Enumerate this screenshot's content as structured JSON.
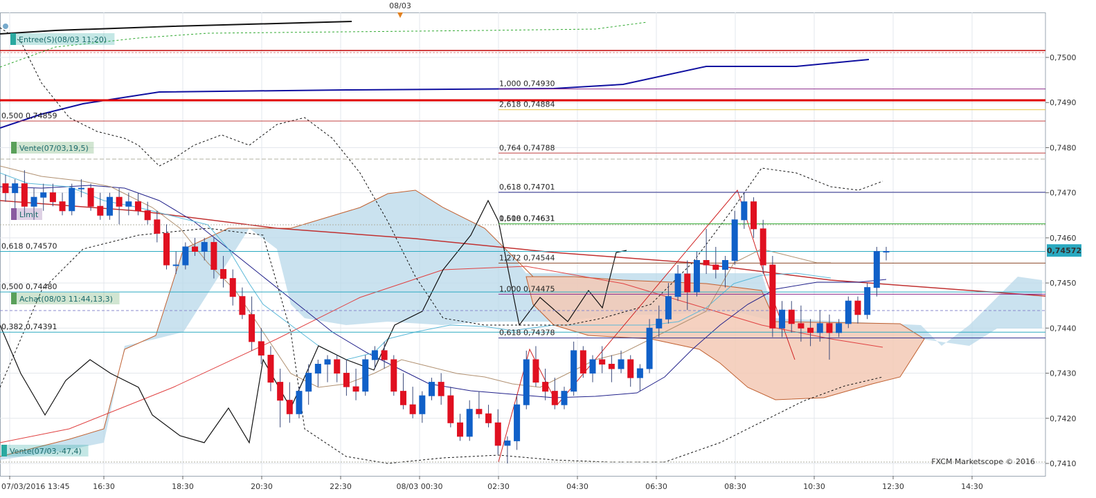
{
  "top_date_label": "08/03",
  "watermark": "FXCM Marketscope © 2016",
  "chart_data": {
    "type": "candlestick",
    "ylim": [
      0.7407,
      0.7514
    ],
    "y_ticks": [
      "0,7410",
      "0,7420",
      "0,7430",
      "0,7440",
      "0,7450",
      "0,7460",
      "0,7470",
      "0,7480",
      "0,7490",
      "0,7500"
    ],
    "x_ticks": [
      "07/03/2016 13:45",
      "16:30",
      "18:30",
      "20:30",
      "22:30",
      "08/03 00:30",
      "02:30",
      "04:30",
      "06:30",
      "08:30",
      "10:30",
      "12:30",
      "14:30"
    ],
    "current_price": "0,74572",
    "fib_levels": [
      {
        "label": "1,000 0,74930",
        "value": 0.7493,
        "color": "#8b2a8b"
      },
      {
        "label": "2,618 0,74884",
        "value": 0.74884,
        "color": "#e8c84a"
      },
      {
        "label": "0,500 0,74859",
        "value": 0.74859,
        "color": "#c04040"
      },
      {
        "label": "0,764 0,74788",
        "value": 0.74788,
        "color": "#c04040"
      },
      {
        "label": "0,618 0,74701",
        "value": 0.74701,
        "color": "#2a2a8b"
      },
      {
        "label": "1,618 0,74631",
        "value": 0.74631,
        "color": "#2fa82f"
      },
      {
        "label": "0,500 0,74631",
        "value": 0.74631,
        "color": "#2fa82f"
      },
      {
        "label": "0,618 0,74570",
        "value": 0.7457,
        "color": "#2aa9c0"
      },
      {
        "label": "1,272 0,74544",
        "value": 0.74544,
        "color": "#8b4a2a"
      },
      {
        "label": "0,500 0,74480",
        "value": 0.7448,
        "color": "#2aa9c0"
      },
      {
        "label": "1,000 0,74475",
        "value": 0.74475,
        "color": "#8b2a8b"
      },
      {
        "label": "0,382 0,74391",
        "value": 0.74391,
        "color": "#2aa9c0"
      },
      {
        "label": "0,618 0,74378",
        "value": 0.74378,
        "color": "#2a2a8b"
      }
    ],
    "order_tags": [
      {
        "label": "Entree(S)(08/03 11:20)",
        "color": "#2aa9a0"
      },
      {
        "label": "Vente(07/03,19,5)",
        "color": "#5aa05a"
      },
      {
        "label": "Limit",
        "color": "#8a5aa0"
      },
      {
        "label": "Achat(08/03 11:44,13,3)",
        "color": "#5aa05a"
      },
      {
        "label": "Vente(07/03,-47,4)",
        "color": "#2aa9a0"
      }
    ],
    "candles": [
      [
        0.7472,
        0.7474,
        0.7468,
        0.747
      ],
      [
        0.747,
        0.7473,
        0.7466,
        0.7472
      ],
      [
        0.7472,
        0.7475,
        0.7465,
        0.7467
      ],
      [
        0.7467,
        0.7471,
        0.7464,
        0.7469
      ],
      [
        0.7469,
        0.7472,
        0.7466,
        0.747
      ],
      [
        0.747,
        0.7472,
        0.7467,
        0.7468
      ],
      [
        0.7468,
        0.747,
        0.7465,
        0.7466
      ],
      [
        0.7466,
        0.7472,
        0.7465,
        0.7471
      ],
      [
        0.7471,
        0.7473,
        0.7469,
        0.7471
      ],
      [
        0.7471,
        0.7472,
        0.7466,
        0.7467
      ],
      [
        0.7467,
        0.747,
        0.7464,
        0.7465
      ],
      [
        0.7465,
        0.747,
        0.7464,
        0.7469
      ],
      [
        0.7469,
        0.7471,
        0.7463,
        0.7467
      ],
      [
        0.7467,
        0.747,
        0.7465,
        0.7468
      ],
      [
        0.7468,
        0.747,
        0.7465,
        0.7466
      ],
      [
        0.7466,
        0.7468,
        0.7463,
        0.7464
      ],
      [
        0.7464,
        0.7466,
        0.7459,
        0.7461
      ],
      [
        0.7461,
        0.7463,
        0.7453,
        0.7454
      ],
      [
        0.7454,
        0.7457,
        0.7452,
        0.7454
      ],
      [
        0.7454,
        0.7459,
        0.7453,
        0.7458
      ],
      [
        0.7458,
        0.746,
        0.7456,
        0.7457
      ],
      [
        0.7457,
        0.746,
        0.7455,
        0.7459
      ],
      [
        0.7459,
        0.746,
        0.7451,
        0.7453
      ],
      [
        0.7453,
        0.7456,
        0.7449,
        0.7451
      ],
      [
        0.7451,
        0.7453,
        0.7445,
        0.7447
      ],
      [
        0.7447,
        0.7449,
        0.7442,
        0.7443
      ],
      [
        0.7443,
        0.7447,
        0.7435,
        0.7437
      ],
      [
        0.7437,
        0.744,
        0.7432,
        0.7434
      ],
      [
        0.7434,
        0.7436,
        0.7426,
        0.7428
      ],
      [
        0.7428,
        0.7431,
        0.7418,
        0.7424
      ],
      [
        0.7424,
        0.7428,
        0.7419,
        0.7421
      ],
      [
        0.7421,
        0.7427,
        0.742,
        0.7426
      ],
      [
        0.7426,
        0.7432,
        0.7423,
        0.743
      ],
      [
        0.743,
        0.7433,
        0.7427,
        0.7432
      ],
      [
        0.7432,
        0.7434,
        0.7428,
        0.7433
      ],
      [
        0.7433,
        0.7434,
        0.7428,
        0.743
      ],
      [
        0.743,
        0.7433,
        0.7425,
        0.7427
      ],
      [
        0.7427,
        0.7431,
        0.7424,
        0.7426
      ],
      [
        0.7426,
        0.7434,
        0.7425,
        0.7433
      ],
      [
        0.7433,
        0.7436,
        0.7431,
        0.7435
      ],
      [
        0.7435,
        0.7437,
        0.7431,
        0.7433
      ],
      [
        0.7433,
        0.7434,
        0.7425,
        0.7426
      ],
      [
        0.7426,
        0.743,
        0.7422,
        0.7423
      ],
      [
        0.7423,
        0.7427,
        0.742,
        0.7421
      ],
      [
        0.7421,
        0.7426,
        0.7419,
        0.7425
      ],
      [
        0.7425,
        0.7429,
        0.7424,
        0.7428
      ],
      [
        0.7428,
        0.743,
        0.7423,
        0.7425
      ],
      [
        0.7425,
        0.7427,
        0.7418,
        0.7419
      ],
      [
        0.7419,
        0.7421,
        0.7415,
        0.7416
      ],
      [
        0.7416,
        0.7424,
        0.7415,
        0.7422
      ],
      [
        0.7422,
        0.7426,
        0.742,
        0.7421
      ],
      [
        0.7421,
        0.7423,
        0.7418,
        0.7419
      ],
      [
        0.7419,
        0.7422,
        0.7412,
        0.7414
      ],
      [
        0.7414,
        0.7416,
        0.741,
        0.7415
      ],
      [
        0.7415,
        0.7425,
        0.7413,
        0.7423
      ],
      [
        0.7423,
        0.7435,
        0.7422,
        0.7433
      ],
      [
        0.7433,
        0.7436,
        0.7427,
        0.7428
      ],
      [
        0.7428,
        0.7431,
        0.7424,
        0.7426
      ],
      [
        0.7426,
        0.7429,
        0.7422,
        0.7423
      ],
      [
        0.7423,
        0.7427,
        0.7422,
        0.7426
      ],
      [
        0.7426,
        0.7437,
        0.7425,
        0.7435
      ],
      [
        0.7435,
        0.7436,
        0.7429,
        0.743
      ],
      [
        0.743,
        0.7434,
        0.7428,
        0.7433
      ],
      [
        0.7433,
        0.7436,
        0.743,
        0.7432
      ],
      [
        0.7432,
        0.7434,
        0.7428,
        0.7431
      ],
      [
        0.7431,
        0.7435,
        0.743,
        0.7433
      ],
      [
        0.7433,
        0.7434,
        0.7427,
        0.7429
      ],
      [
        0.7429,
        0.7432,
        0.7426,
        0.7431
      ],
      [
        0.7431,
        0.7442,
        0.743,
        0.744
      ],
      [
        0.744,
        0.7445,
        0.7438,
        0.7442
      ],
      [
        0.7442,
        0.745,
        0.7441,
        0.7447
      ],
      [
        0.7447,
        0.7454,
        0.7446,
        0.7452
      ],
      [
        0.7452,
        0.7455,
        0.7444,
        0.7448
      ],
      [
        0.7448,
        0.7457,
        0.7447,
        0.7455
      ],
      [
        0.7455,
        0.7462,
        0.7452,
        0.7454
      ],
      [
        0.7454,
        0.7458,
        0.7451,
        0.7453
      ],
      [
        0.7453,
        0.7456,
        0.7449,
        0.7455
      ],
      [
        0.7455,
        0.7466,
        0.7454,
        0.7464
      ],
      [
        0.7464,
        0.747,
        0.7462,
        0.7468
      ],
      [
        0.7468,
        0.7469,
        0.746,
        0.7462
      ],
      [
        0.7462,
        0.7464,
        0.7452,
        0.7454
      ],
      [
        0.7454,
        0.7456,
        0.7438,
        0.744
      ],
      [
        0.744,
        0.7446,
        0.7438,
        0.7444
      ],
      [
        0.7444,
        0.7446,
        0.7439,
        0.7441
      ],
      [
        0.7441,
        0.7445,
        0.7437,
        0.744
      ],
      [
        0.744,
        0.7442,
        0.7436,
        0.7439
      ],
      [
        0.7439,
        0.7444,
        0.7437,
        0.7441
      ],
      [
        0.7441,
        0.7443,
        0.7433,
        0.7439
      ],
      [
        0.7439,
        0.7442,
        0.7438,
        0.7441
      ],
      [
        0.7441,
        0.7447,
        0.744,
        0.7446
      ],
      [
        0.7446,
        0.7447,
        0.7441,
        0.7443
      ],
      [
        0.7443,
        0.745,
        0.7442,
        0.7449
      ],
      [
        0.7449,
        0.7458,
        0.7447,
        0.7457
      ],
      [
        0.7457,
        0.7458,
        0.7455,
        0.7457
      ]
    ]
  }
}
